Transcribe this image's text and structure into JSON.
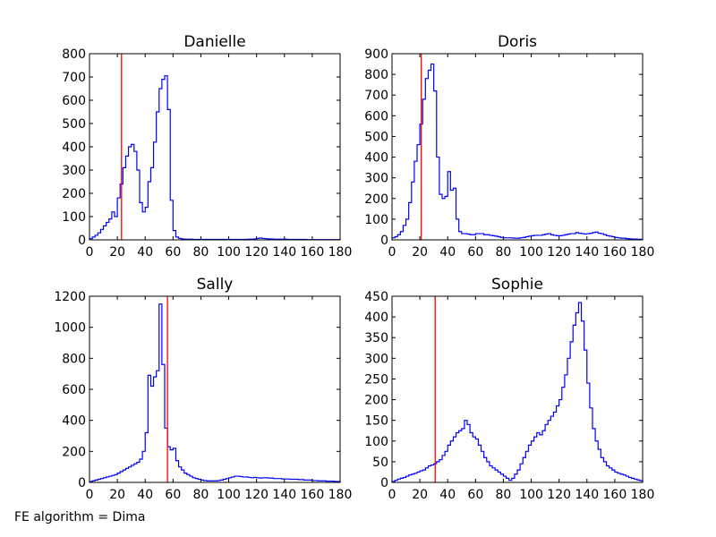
{
  "footer_text": "FE algorithm = Dima",
  "colors": {
    "histogram": "#0000ff",
    "threshold_line": "#ff0000",
    "axes": "#000000"
  },
  "chart_data": [
    {
      "type": "histogram",
      "title": "Danielle",
      "xlim": [
        0,
        180
      ],
      "ylim": [
        0,
        800
      ],
      "xticks": [
        0,
        20,
        40,
        60,
        80,
        100,
        120,
        140,
        160,
        180
      ],
      "yticks": [
        0,
        100,
        200,
        300,
        400,
        500,
        600,
        700,
        800
      ],
      "threshold_x": 23,
      "bin_width": 2,
      "x_start": 0,
      "values": [
        5,
        12,
        20,
        30,
        45,
        60,
        75,
        90,
        120,
        100,
        180,
        240,
        310,
        360,
        400,
        410,
        380,
        300,
        160,
        120,
        140,
        250,
        310,
        420,
        550,
        650,
        690,
        705,
        560,
        170,
        40,
        12,
        6,
        4,
        3,
        3,
        3,
        2,
        2,
        2,
        2,
        2,
        2,
        2,
        2,
        2,
        2,
        2,
        2,
        2,
        2,
        2,
        2,
        2,
        2,
        2,
        2,
        3,
        3,
        4,
        6,
        8,
        6,
        5,
        4,
        4,
        3,
        3,
        3,
        3,
        3,
        2,
        2,
        2,
        2,
        2,
        2,
        2,
        1,
        1,
        1,
        1,
        1,
        1,
        1,
        1,
        1,
        1,
        1,
        1
      ]
    },
    {
      "type": "histogram",
      "title": "Doris",
      "xlim": [
        0,
        180
      ],
      "ylim": [
        0,
        900
      ],
      "xticks": [
        0,
        20,
        40,
        60,
        80,
        100,
        120,
        140,
        160,
        180
      ],
      "yticks": [
        0,
        100,
        200,
        300,
        400,
        500,
        600,
        700,
        800,
        900
      ],
      "threshold_x": 21,
      "bin_width": 2,
      "x_start": 0,
      "values": [
        10,
        15,
        25,
        40,
        70,
        100,
        180,
        280,
        380,
        460,
        560,
        680,
        780,
        820,
        850,
        720,
        400,
        220,
        200,
        210,
        330,
        240,
        250,
        100,
        40,
        30,
        30,
        28,
        25,
        25,
        30,
        30,
        30,
        25,
        25,
        22,
        20,
        18,
        15,
        12,
        10,
        10,
        10,
        9,
        8,
        8,
        10,
        12,
        15,
        18,
        20,
        22,
        22,
        22,
        25,
        28,
        30,
        25,
        22,
        20,
        20,
        22,
        25,
        28,
        30,
        30,
        35,
        32,
        30,
        28,
        30,
        32,
        35,
        38,
        32,
        30,
        25,
        20,
        18,
        15,
        12,
        10,
        8,
        8,
        6,
        5,
        4,
        4,
        3,
        3
      ]
    },
    {
      "type": "histogram",
      "title": "Sally",
      "xlim": [
        0,
        180
      ],
      "ylim": [
        0,
        1200
      ],
      "xticks": [
        0,
        20,
        40,
        60,
        80,
        100,
        120,
        140,
        160,
        180
      ],
      "yticks": [
        0,
        200,
        400,
        600,
        800,
        1000,
        1200
      ],
      "threshold_x": 56,
      "bin_width": 2,
      "x_start": 0,
      "values": [
        5,
        10,
        15,
        20,
        25,
        30,
        35,
        40,
        45,
        50,
        60,
        70,
        80,
        90,
        100,
        110,
        120,
        130,
        150,
        200,
        320,
        690,
        620,
        680,
        720,
        1150,
        760,
        350,
        230,
        210,
        220,
        140,
        100,
        80,
        60,
        50,
        40,
        30,
        25,
        20,
        15,
        12,
        10,
        10,
        10,
        10,
        12,
        15,
        20,
        25,
        30,
        35,
        40,
        40,
        38,
        35,
        35,
        32,
        30,
        32,
        30,
        28,
        30,
        30,
        28,
        28,
        25,
        25,
        25,
        22,
        22,
        22,
        20,
        20,
        20,
        18,
        18,
        15,
        15,
        15,
        12,
        12,
        10,
        10,
        10,
        8,
        8,
        8,
        6,
        6
      ]
    },
    {
      "type": "histogram",
      "title": "Sophie",
      "xlim": [
        0,
        180
      ],
      "ylim": [
        0,
        450
      ],
      "xticks": [
        0,
        20,
        40,
        60,
        80,
        100,
        120,
        140,
        160,
        180
      ],
      "yticks": [
        0,
        50,
        100,
        150,
        200,
        250,
        300,
        350,
        400,
        450
      ],
      "threshold_x": 31,
      "bin_width": 2,
      "x_start": 0,
      "values": [
        2,
        5,
        8,
        10,
        12,
        15,
        18,
        20,
        22,
        25,
        28,
        30,
        35,
        40,
        42,
        45,
        50,
        55,
        65,
        75,
        90,
        100,
        110,
        120,
        125,
        130,
        150,
        140,
        120,
        110,
        105,
        90,
        75,
        60,
        50,
        40,
        35,
        30,
        25,
        20,
        15,
        10,
        5,
        10,
        20,
        30,
        45,
        60,
        75,
        90,
        100,
        110,
        120,
        115,
        125,
        140,
        150,
        160,
        170,
        185,
        200,
        230,
        260,
        300,
        340,
        380,
        410,
        435,
        390,
        320,
        240,
        180,
        130,
        100,
        80,
        60,
        50,
        40,
        35,
        30,
        25,
        22,
        20,
        18,
        15,
        12,
        10,
        8,
        6,
        4
      ]
    }
  ]
}
